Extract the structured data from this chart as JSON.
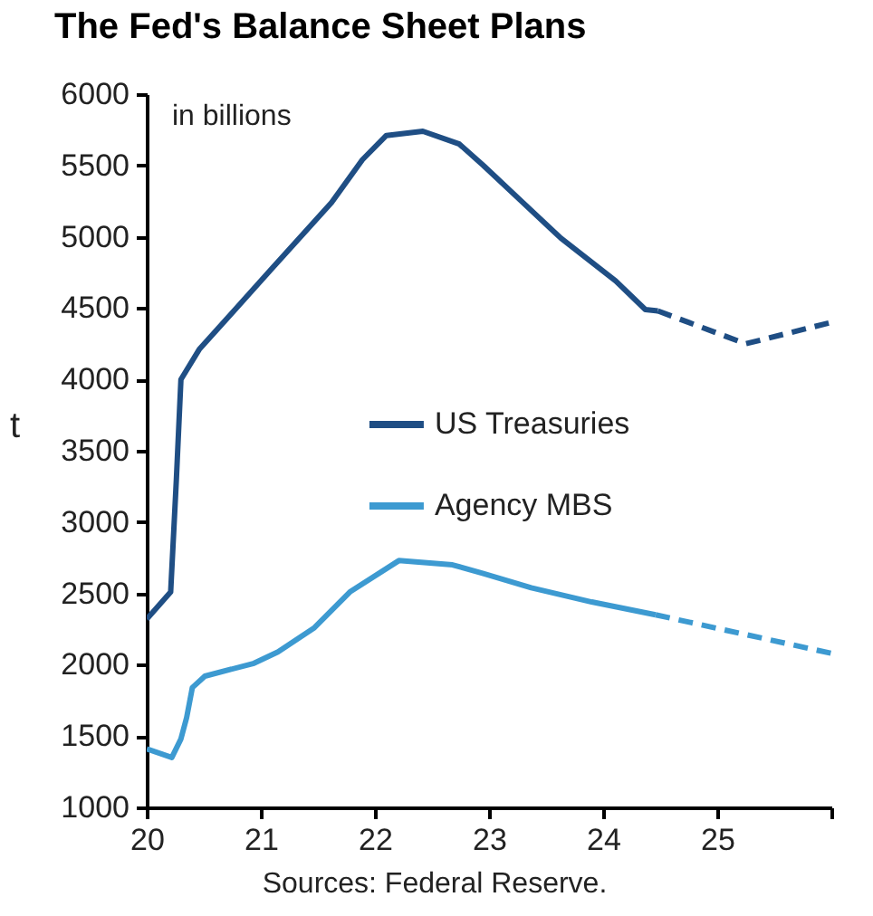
{
  "chart_data": {
    "type": "line",
    "title": "The Fed's Balance Sheet Plans",
    "ylabel": "t",
    "annotations": [
      "in billions",
      "Sources: Federal Reserve."
    ],
    "xlim": [
      20,
      26
    ],
    "xticks": [
      20,
      21,
      22,
      23,
      24,
      25,
      {
        "value": 26,
        "label": null
      }
    ],
    "ylim": [
      1000,
      6000
    ],
    "yticks": [
      1000,
      1500,
      2000,
      2500,
      3000,
      3500,
      4000,
      4500,
      5000,
      5500,
      6000
    ],
    "grid": false,
    "legend": "right",
    "marker": "none",
    "series": [
      {
        "name": "US Treasuries",
        "color": "#1f4e84",
        "line_style": "solid",
        "x": [
          20.0,
          20.21,
          20.26,
          20.3,
          20.46,
          21.1,
          21.62,
          21.89,
          22.1,
          22.42,
          22.74,
          22.95,
          23.27,
          23.63,
          24.11,
          24.37,
          24.48
        ],
        "values": [
          2320,
          2510,
          3300,
          4000,
          4210,
          4780,
          5240,
          5540,
          5710,
          5740,
          5650,
          5500,
          5260,
          4990,
          4690,
          4490,
          4480
        ]
      },
      {
        "color": "#1f4e84",
        "line_style": "dashed",
        "x": [
          24.48,
          25.25,
          26.0
        ],
        "values": [
          4480,
          4250,
          4400
        ]
      },
      {
        "name": "Agency MBS",
        "color": "#3d9ad1",
        "line_style": "solid",
        "x": [
          20.0,
          20.22,
          20.3,
          20.35,
          20.4,
          20.51,
          20.94,
          21.15,
          21.47,
          21.78,
          22.21,
          22.68,
          22.95,
          23.37,
          23.9,
          24.46
        ],
        "values": [
          1410,
          1350,
          1480,
          1630,
          1840,
          1920,
          2010,
          2090,
          2260,
          2510,
          2730,
          2700,
          2640,
          2540,
          2440,
          2350
        ]
      },
      {
        "color": "#3d9ad1",
        "line_style": "dashed",
        "x": [
          24.46,
          26.0
        ],
        "values": [
          2350,
          2080
        ]
      }
    ]
  }
}
